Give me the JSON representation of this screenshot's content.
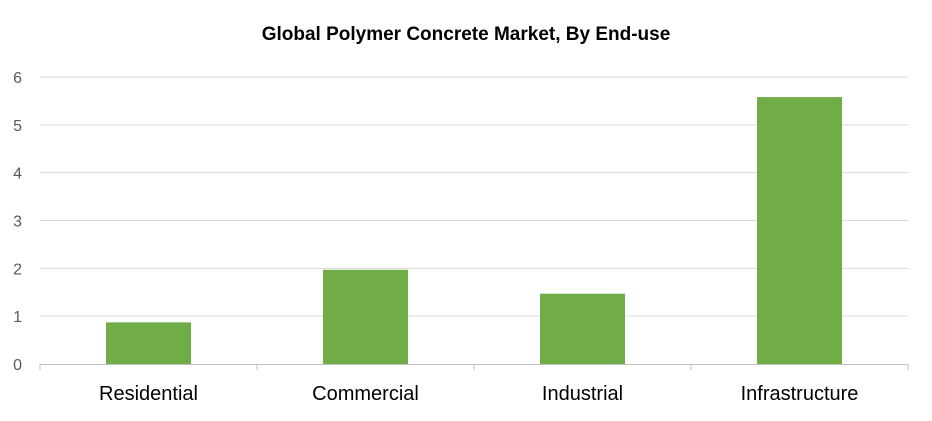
{
  "chart_data": {
    "type": "bar",
    "title": "Global Polymer Concrete Market, By End-use",
    "xlabel": "",
    "ylabel": "",
    "categories": [
      "Residential",
      "Commercial",
      "Industrial",
      "Infrastructure"
    ],
    "values": [
      0.87,
      1.97,
      1.47,
      5.58
    ],
    "ylim": [
      0,
      6
    ],
    "yticks": [
      0,
      1,
      2,
      3,
      4,
      5,
      6
    ],
    "grid": true,
    "legend": "none",
    "bar_color": "#70AD47",
    "grid_color": "#D9D9D9",
    "axis_color": "#BFBFBF",
    "tick_label_color": "#595959",
    "category_label_color": "#000000"
  }
}
